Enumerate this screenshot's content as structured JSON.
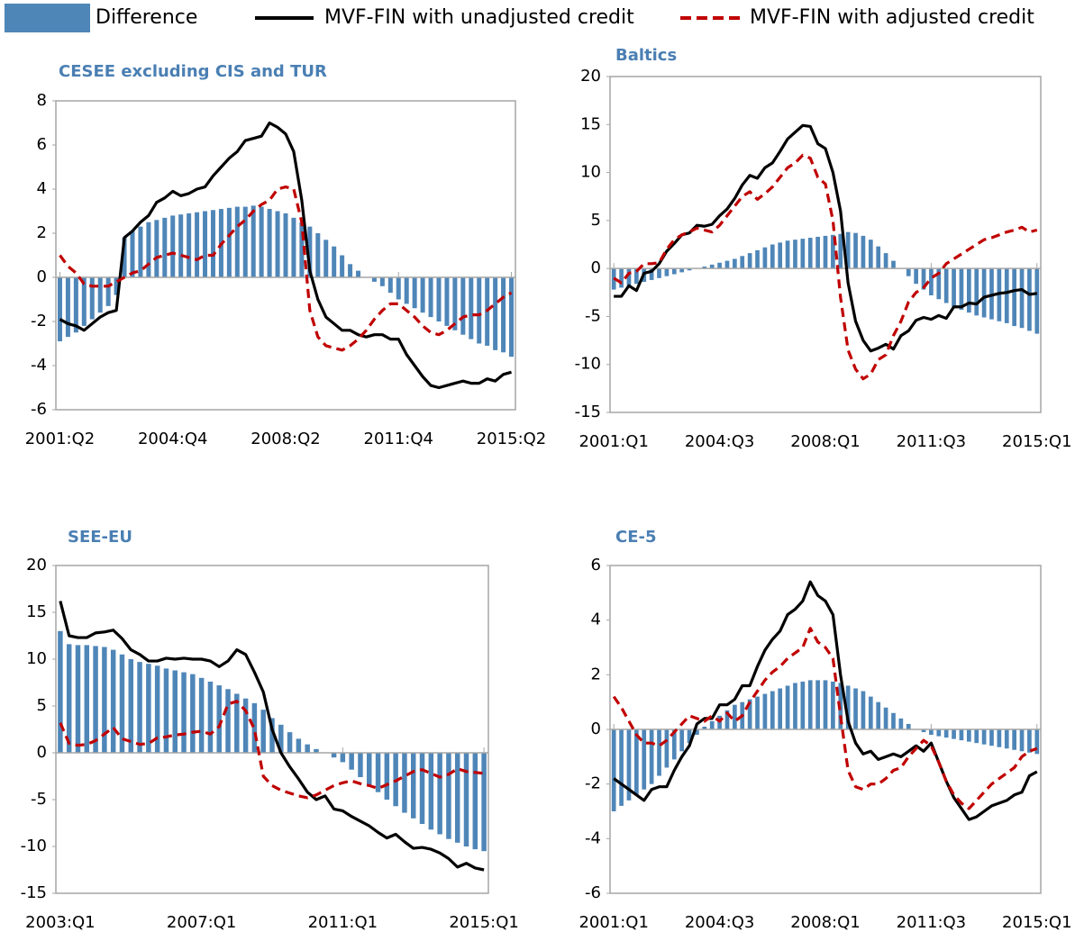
{
  "legend": [
    {
      "name": "Difference",
      "color": "#4f86b8",
      "type": "bar"
    },
    {
      "name": "MVF-FIN with unadjusted credit",
      "color": "#000000",
      "type": "line"
    },
    {
      "name": "MVF-FIN with adjusted credit",
      "color": "#c00000",
      "type": "line",
      "dashed": true
    }
  ],
  "chart_data": [
    {
      "type": "bar",
      "title": "CESEE excluding CIS and TUR",
      "categories": [
        "2001:Q2",
        null,
        null,
        null,
        null,
        null,
        null,
        null,
        null,
        null,
        null,
        null,
        null,
        null,
        "2004:Q4",
        null,
        null,
        null,
        null,
        null,
        null,
        null,
        null,
        null,
        null,
        null,
        null,
        null,
        "2008:Q2",
        null,
        null,
        null,
        null,
        null,
        null,
        null,
        null,
        null,
        null,
        null,
        null,
        null,
        "2011:Q4",
        null,
        null,
        null,
        null,
        null,
        null,
        null,
        null,
        null,
        null,
        null,
        null,
        null,
        "2015:Q2"
      ],
      "ylim": [
        -6,
        8
      ],
      "yticks": [
        -6,
        -4,
        -2,
        0,
        2,
        4,
        6,
        8
      ],
      "series": [
        {
          "type": "bar",
          "color": "#4f86b8",
          "values": [
            -2.9,
            -2.7,
            -2.5,
            -2.2,
            -1.9,
            -1.6,
            -1.3,
            -0.8,
            1.8,
            2.1,
            2.3,
            2.5,
            2.6,
            2.7,
            2.8,
            2.85,
            2.9,
            2.95,
            3.0,
            3.05,
            3.1,
            3.15,
            3.2,
            3.2,
            3.25,
            3.2,
            3.1,
            3.0,
            2.9,
            2.7,
            2.5,
            2.3,
            2.0,
            1.7,
            1.4,
            1.0,
            0.6,
            0.3,
            0.0,
            -0.2,
            -0.4,
            -0.7,
            -1.0,
            -1.2,
            -1.4,
            -1.6,
            -1.8,
            -2.0,
            -2.2,
            -2.4,
            -2.6,
            -2.8,
            -3.0,
            -3.1,
            -3.3,
            -3.4,
            -3.6
          ]
        },
        {
          "type": "line",
          "color": "#000000",
          "values": [
            -1.9,
            -2.1,
            -2.2,
            -2.4,
            -2.1,
            -1.8,
            -1.6,
            -1.5,
            1.8,
            2.1,
            2.5,
            2.8,
            3.4,
            3.6,
            3.9,
            3.7,
            3.8,
            4.0,
            4.1,
            4.6,
            5.0,
            5.4,
            5.7,
            6.2,
            6.3,
            6.4,
            7.0,
            6.8,
            6.5,
            5.7,
            3.5,
            0.3,
            -1.0,
            -1.8,
            -2.1,
            -2.4,
            -2.4,
            -2.6,
            -2.7,
            -2.6,
            -2.6,
            -2.8,
            -2.8,
            -3.5,
            -4.0,
            -4.5,
            -4.9,
            -5.0,
            -4.9,
            -4.8,
            -4.7,
            -4.8,
            -4.8,
            -4.6,
            -4.7,
            -4.4,
            -4.3
          ]
        },
        {
          "type": "line",
          "color": "#c00000",
          "dashed": true,
          "values": [
            1.0,
            0.5,
            0.2,
            -0.3,
            -0.4,
            -0.4,
            -0.4,
            -0.2,
            0.0,
            0.2,
            0.3,
            0.6,
            0.9,
            1.0,
            1.1,
            1.0,
            0.9,
            0.8,
            1.0,
            1.0,
            1.5,
            1.9,
            2.3,
            2.6,
            3.0,
            3.3,
            3.5,
            4.0,
            4.1,
            4.0,
            2.5,
            -1.5,
            -2.7,
            -3.1,
            -3.2,
            -3.3,
            -3.1,
            -2.8,
            -2.4,
            -1.9,
            -1.5,
            -1.2,
            -1.2,
            -1.5,
            -1.8,
            -2.2,
            -2.5,
            -2.6,
            -2.4,
            -2.1,
            -1.8,
            -1.7,
            -1.7,
            -1.5,
            -1.2,
            -0.9,
            -0.7
          ]
        }
      ]
    },
    {
      "type": "bar",
      "title": "Baltics",
      "categories": [
        "2001:Q1",
        null,
        null,
        null,
        null,
        null,
        null,
        null,
        null,
        null,
        null,
        null,
        null,
        null,
        "2004:Q3",
        null,
        null,
        null,
        null,
        null,
        null,
        null,
        null,
        null,
        null,
        null,
        null,
        null,
        "2008:Q1",
        null,
        null,
        null,
        null,
        null,
        null,
        null,
        null,
        null,
        null,
        null,
        null,
        null,
        "2011:Q3",
        null,
        null,
        null,
        null,
        null,
        null,
        null,
        null,
        null,
        null,
        null,
        null,
        null,
        "2015:Q1"
      ],
      "ylim": [
        -15,
        20
      ],
      "yticks": [
        -15,
        -10,
        -5,
        0,
        5,
        10,
        15,
        20
      ],
      "series": [
        {
          "type": "bar",
          "color": "#4f86b8",
          "values": [
            -2.2,
            -2.0,
            -1.8,
            -1.6,
            -1.4,
            -1.2,
            -1.0,
            -0.8,
            -0.6,
            -0.4,
            -0.2,
            0,
            0.2,
            0.4,
            0.6,
            0.8,
            1.0,
            1.3,
            1.6,
            1.9,
            2.2,
            2.5,
            2.7,
            2.9,
            3.0,
            3.1,
            3.2,
            3.3,
            3.4,
            3.5,
            3.6,
            3.8,
            3.7,
            3.4,
            3.0,
            2.3,
            1.6,
            0.8,
            0.0,
            -0.8,
            -1.6,
            -2.2,
            -2.8,
            -3.2,
            -3.6,
            -4.0,
            -4.3,
            -4.6,
            -4.9,
            -5.1,
            -5.3,
            -5.5,
            -5.7,
            -6.0,
            -6.2,
            -6.5,
            -6.8
          ]
        },
        {
          "type": "line",
          "color": "#000000",
          "values": [
            -2.9,
            -2.9,
            -1.8,
            -2.3,
            -0.5,
            -0.3,
            0.5,
            1.8,
            2.6,
            3.5,
            3.7,
            4.5,
            4.4,
            4.6,
            5.5,
            6.2,
            7.3,
            8.7,
            9.7,
            9.4,
            10.5,
            11.0,
            12.2,
            13.5,
            14.2,
            14.9,
            14.8,
            13.0,
            12.5,
            10.0,
            6.0,
            -1.5,
            -5.5,
            -7.5,
            -8.6,
            -8.3,
            -7.9,
            -8.4,
            -7.0,
            -6.5,
            -5.4,
            -5.1,
            -5.3,
            -4.9,
            -5.2,
            -4.0,
            -4.0,
            -3.6,
            -3.7,
            -3.0,
            -2.8,
            -2.6,
            -2.5,
            -2.3,
            -2.2,
            -2.7,
            -2.6
          ]
        },
        {
          "type": "line",
          "color": "#c00000",
          "dashed": true,
          "values": [
            -1.0,
            -1.5,
            -0.5,
            -0.3,
            0.5,
            0.5,
            0.6,
            2.0,
            3.0,
            3.5,
            3.8,
            4.2,
            4.0,
            3.8,
            4.5,
            5.5,
            6.5,
            7.5,
            8.0,
            7.2,
            7.8,
            8.5,
            9.5,
            10.5,
            11.0,
            11.8,
            11.5,
            9.5,
            8.8,
            5.0,
            -3.0,
            -8.5,
            -10.5,
            -11.5,
            -11.0,
            -9.5,
            -9.0,
            -7.0,
            -5.5,
            -3.5,
            -2.5,
            -2.0,
            -1.0,
            -0.5,
            0.5,
            1.0,
            1.5,
            2.0,
            2.5,
            3.0,
            3.2,
            3.5,
            3.8,
            4.0,
            4.3,
            3.8,
            4.0
          ]
        }
      ]
    },
    {
      "type": "bar",
      "title": "SEE-EU",
      "categories": [
        "2003:Q1",
        null,
        null,
        null,
        null,
        null,
        null,
        null,
        null,
        null,
        null,
        null,
        null,
        null,
        null,
        null,
        "2007:Q1",
        null,
        null,
        null,
        null,
        null,
        null,
        null,
        null,
        null,
        null,
        null,
        null,
        null,
        null,
        null,
        "2011:Q1",
        null,
        null,
        null,
        null,
        null,
        null,
        null,
        null,
        null,
        null,
        null,
        null,
        null,
        null,
        null,
        "2015:Q1"
      ],
      "ylim": [
        -15,
        20
      ],
      "yticks": [
        -15,
        -10,
        -5,
        0,
        5,
        10,
        15,
        20
      ],
      "series": [
        {
          "type": "bar",
          "color": "#4f86b8",
          "values": [
            13.0,
            11.6,
            11.5,
            11.5,
            11.4,
            11.3,
            11.0,
            10.5,
            10.0,
            9.7,
            9.5,
            9.3,
            9.0,
            8.8,
            8.6,
            8.4,
            8.0,
            7.6,
            7.2,
            6.8,
            6.3,
            5.8,
            5.3,
            4.6,
            3.7,
            3.0,
            2.2,
            1.5,
            0.9,
            0.4,
            0.0,
            -0.5,
            -1.0,
            -1.8,
            -2.6,
            -3.4,
            -4.2,
            -5.0,
            -5.7,
            -6.4,
            -7.0,
            -7.6,
            -8.2,
            -8.7,
            -9.2,
            -9.6,
            -10.0,
            -10.3,
            -10.5
          ]
        },
        {
          "type": "line",
          "color": "#000000",
          "values": [
            16.2,
            12.5,
            12.3,
            12.3,
            12.8,
            12.9,
            13.1,
            12.2,
            11.0,
            10.5,
            9.8,
            9.8,
            10.1,
            10.0,
            10.1,
            10.0,
            10.0,
            9.8,
            9.2,
            9.8,
            11.0,
            10.5,
            8.6,
            6.5,
            2.5,
            0.0,
            -1.5,
            -2.8,
            -4.2,
            -5.0,
            -4.6,
            -6.0,
            -6.2,
            -6.8,
            -7.3,
            -7.8,
            -8.5,
            -9.1,
            -8.7,
            -9.5,
            -10.2,
            -10.1,
            -10.3,
            -10.7,
            -11.3,
            -12.2,
            -11.8,
            -12.3,
            -12.5
          ]
        },
        {
          "type": "line",
          "color": "#c00000",
          "dashed": true,
          "values": [
            3.2,
            1.0,
            0.8,
            0.9,
            1.3,
            2.0,
            2.7,
            1.5,
            1.2,
            0.9,
            1.0,
            1.6,
            1.7,
            1.9,
            2.0,
            2.2,
            2.3,
            2.0,
            2.8,
            5.2,
            5.5,
            4.5,
            2.5,
            -2.5,
            -3.5,
            -4.0,
            -4.3,
            -4.6,
            -4.8,
            -4.5,
            -4.0,
            -3.5,
            -3.2,
            -3.0,
            -3.3,
            -3.5,
            -3.8,
            -3.4,
            -3.0,
            -2.5,
            -2.0,
            -1.8,
            -2.2,
            -2.6,
            -2.3,
            -1.7,
            -2.0,
            -2.1,
            -2.2
          ]
        }
      ]
    },
    {
      "type": "bar",
      "title": "CE-5",
      "categories": [
        "2001:Q1",
        null,
        null,
        null,
        null,
        null,
        null,
        null,
        null,
        null,
        null,
        null,
        null,
        null,
        "2004:Q3",
        null,
        null,
        null,
        null,
        null,
        null,
        null,
        null,
        null,
        null,
        null,
        null,
        null,
        "2008:Q1",
        null,
        null,
        null,
        null,
        null,
        null,
        null,
        null,
        null,
        null,
        null,
        null,
        null,
        "2011:Q3",
        null,
        null,
        null,
        null,
        null,
        null,
        null,
        null,
        null,
        null,
        null,
        null,
        null,
        "2015:Q1"
      ],
      "ylim": [
        -6,
        6
      ],
      "yticks": [
        -6,
        -4,
        -2,
        0,
        2,
        4,
        6
      ],
      "series": [
        {
          "type": "bar",
          "color": "#4f86b8",
          "values": [
            -3.0,
            -2.8,
            -2.6,
            -2.4,
            -2.2,
            -2.0,
            -1.7,
            -1.4,
            -1.1,
            -0.8,
            -0.5,
            -0.2,
            0.1,
            0.3,
            0.5,
            0.7,
            0.9,
            1.0,
            1.1,
            1.2,
            1.3,
            1.4,
            1.5,
            1.6,
            1.7,
            1.75,
            1.8,
            1.8,
            1.8,
            1.75,
            1.7,
            1.6,
            1.5,
            1.4,
            1.2,
            1.0,
            0.8,
            0.6,
            0.4,
            0.2,
            0.0,
            -0.1,
            -0.2,
            -0.25,
            -0.3,
            -0.35,
            -0.4,
            -0.45,
            -0.5,
            -0.55,
            -0.6,
            -0.65,
            -0.7,
            -0.75,
            -0.8,
            -0.85,
            -0.9
          ]
        },
        {
          "type": "line",
          "color": "#000000",
          "values": [
            -1.8,
            -2.0,
            -2.2,
            -2.4,
            -2.6,
            -2.2,
            -2.1,
            -2.1,
            -1.5,
            -1.0,
            -0.6,
            0.2,
            0.4,
            0.4,
            0.9,
            0.9,
            1.1,
            1.6,
            1.6,
            2.3,
            2.9,
            3.3,
            3.6,
            4.2,
            4.4,
            4.7,
            5.4,
            4.9,
            4.7,
            4.2,
            2.0,
            0.3,
            -0.5,
            -0.9,
            -0.8,
            -1.1,
            -1.0,
            -0.9,
            -1.0,
            -0.8,
            -0.6,
            -0.8,
            -0.5,
            -1.2,
            -1.9,
            -2.5,
            -2.9,
            -3.3,
            -3.2,
            -3.0,
            -2.8,
            -2.7,
            -2.6,
            -2.4,
            -2.3,
            -1.7,
            -1.55
          ]
        },
        {
          "type": "line",
          "color": "#c00000",
          "dashed": true,
          "values": [
            1.2,
            0.8,
            0.3,
            -0.2,
            -0.5,
            -0.5,
            -0.6,
            -0.4,
            -0.1,
            0.2,
            0.5,
            0.4,
            0.3,
            0.5,
            0.3,
            0.6,
            0.3,
            0.5,
            1.0,
            1.4,
            1.8,
            2.1,
            2.3,
            2.6,
            2.8,
            3.0,
            3.7,
            3.2,
            3.0,
            2.6,
            0.5,
            -1.5,
            -2.1,
            -2.2,
            -2.0,
            -2.0,
            -1.8,
            -1.5,
            -1.4,
            -1.0,
            -0.7,
            -0.4,
            -0.6,
            -1.2,
            -1.9,
            -2.4,
            -2.7,
            -2.9,
            -2.6,
            -2.3,
            -2.0,
            -1.8,
            -1.6,
            -1.4,
            -1.0,
            -0.8,
            -0.7
          ]
        }
      ]
    }
  ]
}
